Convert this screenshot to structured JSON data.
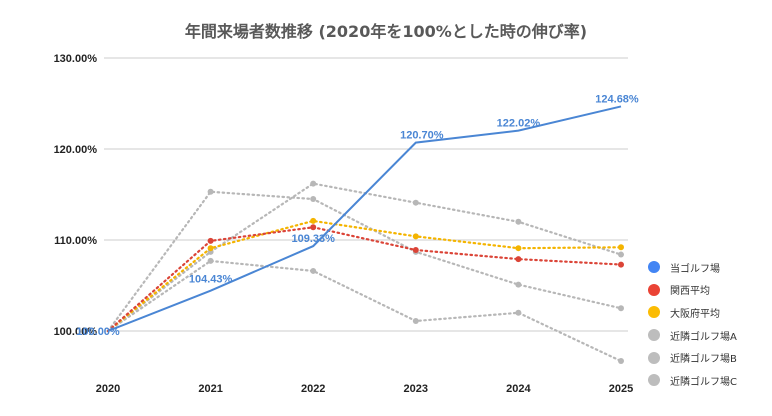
{
  "chart_data": {
    "type": "line",
    "title": "年間来場者数推移 (2020年を100%とした時の伸び率)",
    "xlabel": "",
    "ylabel": "",
    "categories": [
      "2020",
      "2021",
      "2022",
      "2023",
      "2024",
      "2025"
    ],
    "ylim": [
      100,
      130
    ],
    "yticks": [
      "100.00%",
      "110.00%",
      "120.00%",
      "130.00%"
    ],
    "ytick_values": [
      100,
      110,
      120,
      130
    ],
    "grid": true,
    "legend_position": "right",
    "series": [
      {
        "name": "当ゴルフ場",
        "color": "#4a86d4",
        "style": "solid",
        "values": [
          100.0,
          104.43,
          109.33,
          120.7,
          122.02,
          124.68
        ],
        "data_labels": [
          "100.00%",
          "104.43%",
          "109.33%",
          "120.70%",
          "122.02%",
          "124.68%"
        ]
      },
      {
        "name": "関西平均",
        "color": "#db4437",
        "style": "dotted",
        "values": [
          100.0,
          109.9,
          111.4,
          108.9,
          107.9,
          107.3
        ]
      },
      {
        "name": "大阪府平均",
        "color": "#f4b400",
        "style": "dotted",
        "values": [
          100.0,
          109.1,
          112.1,
          110.4,
          109.1,
          109.2
        ]
      },
      {
        "name": "近隣ゴルフ場A",
        "color": "#b7b7b7",
        "style": "dotted",
        "values": [
          100.0,
          115.3,
          114.5,
          108.7,
          105.1,
          102.5
        ]
      },
      {
        "name": "近隣ゴルフ場B",
        "color": "#b7b7b7",
        "style": "dotted",
        "values": [
          100.0,
          108.7,
          116.2,
          114.1,
          112.0,
          108.4
        ]
      },
      {
        "name": "近隣ゴルフ場C",
        "color": "#b7b7b7",
        "style": "dotted",
        "values": [
          100.0,
          107.7,
          106.6,
          101.1,
          102.0,
          96.7
        ]
      }
    ]
  }
}
